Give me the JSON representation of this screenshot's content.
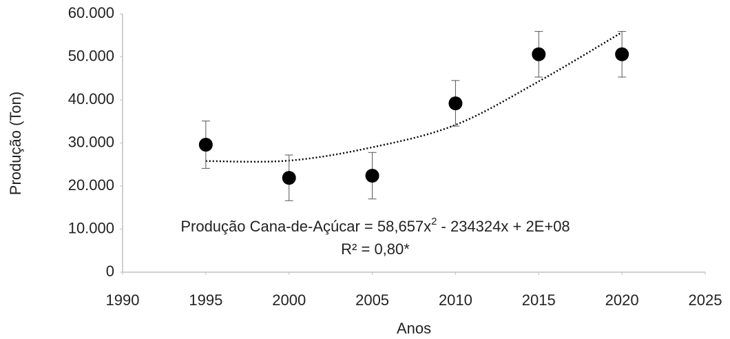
{
  "chart_data": {
    "type": "scatter",
    "x_label": "Anos",
    "y_label": "Produção (Ton)",
    "x": [
      1995,
      2000,
      2005,
      2010,
      2015,
      2020
    ],
    "series": [
      {
        "color": "#000000",
        "values": [
          29600,
          21900,
          22400,
          39200,
          50600,
          50600
        ],
        "errors": [
          5500,
          5300,
          5400,
          5300,
          5300,
          5300
        ]
      }
    ],
    "trendline": {
      "color": "#000000",
      "style": "dotted",
      "x": [
        1995,
        2000,
        2005,
        2010,
        2015,
        2020
      ],
      "values": [
        25800,
        25900,
        29000,
        34200,
        44300,
        55700
      ]
    },
    "equation": {
      "text": "Produção Cana-de-Açúcar = 58,657x",
      "superscript": "2",
      "rest": "- 234324x + 2E+08"
    },
    "r_squared": "R² = 0,80*",
    "xlim": [
      1990,
      2025
    ],
    "xticks": [
      1990,
      1995,
      2000,
      2005,
      2010,
      2015,
      2020,
      2025
    ],
    "ylim": [
      0,
      60000
    ],
    "yticks": [
      0,
      {
        "value": 10000,
        "label": "10.000"
      },
      {
        "value": 20000,
        "label": "20.000"
      },
      {
        "value": 30000,
        "label": "30.000"
      },
      {
        "value": 40000,
        "label": "40.000"
      },
      {
        "value": 50000,
        "label": "50.000"
      },
      {
        "value": 60000,
        "label": "60.000"
      }
    ],
    "grid": false
  }
}
